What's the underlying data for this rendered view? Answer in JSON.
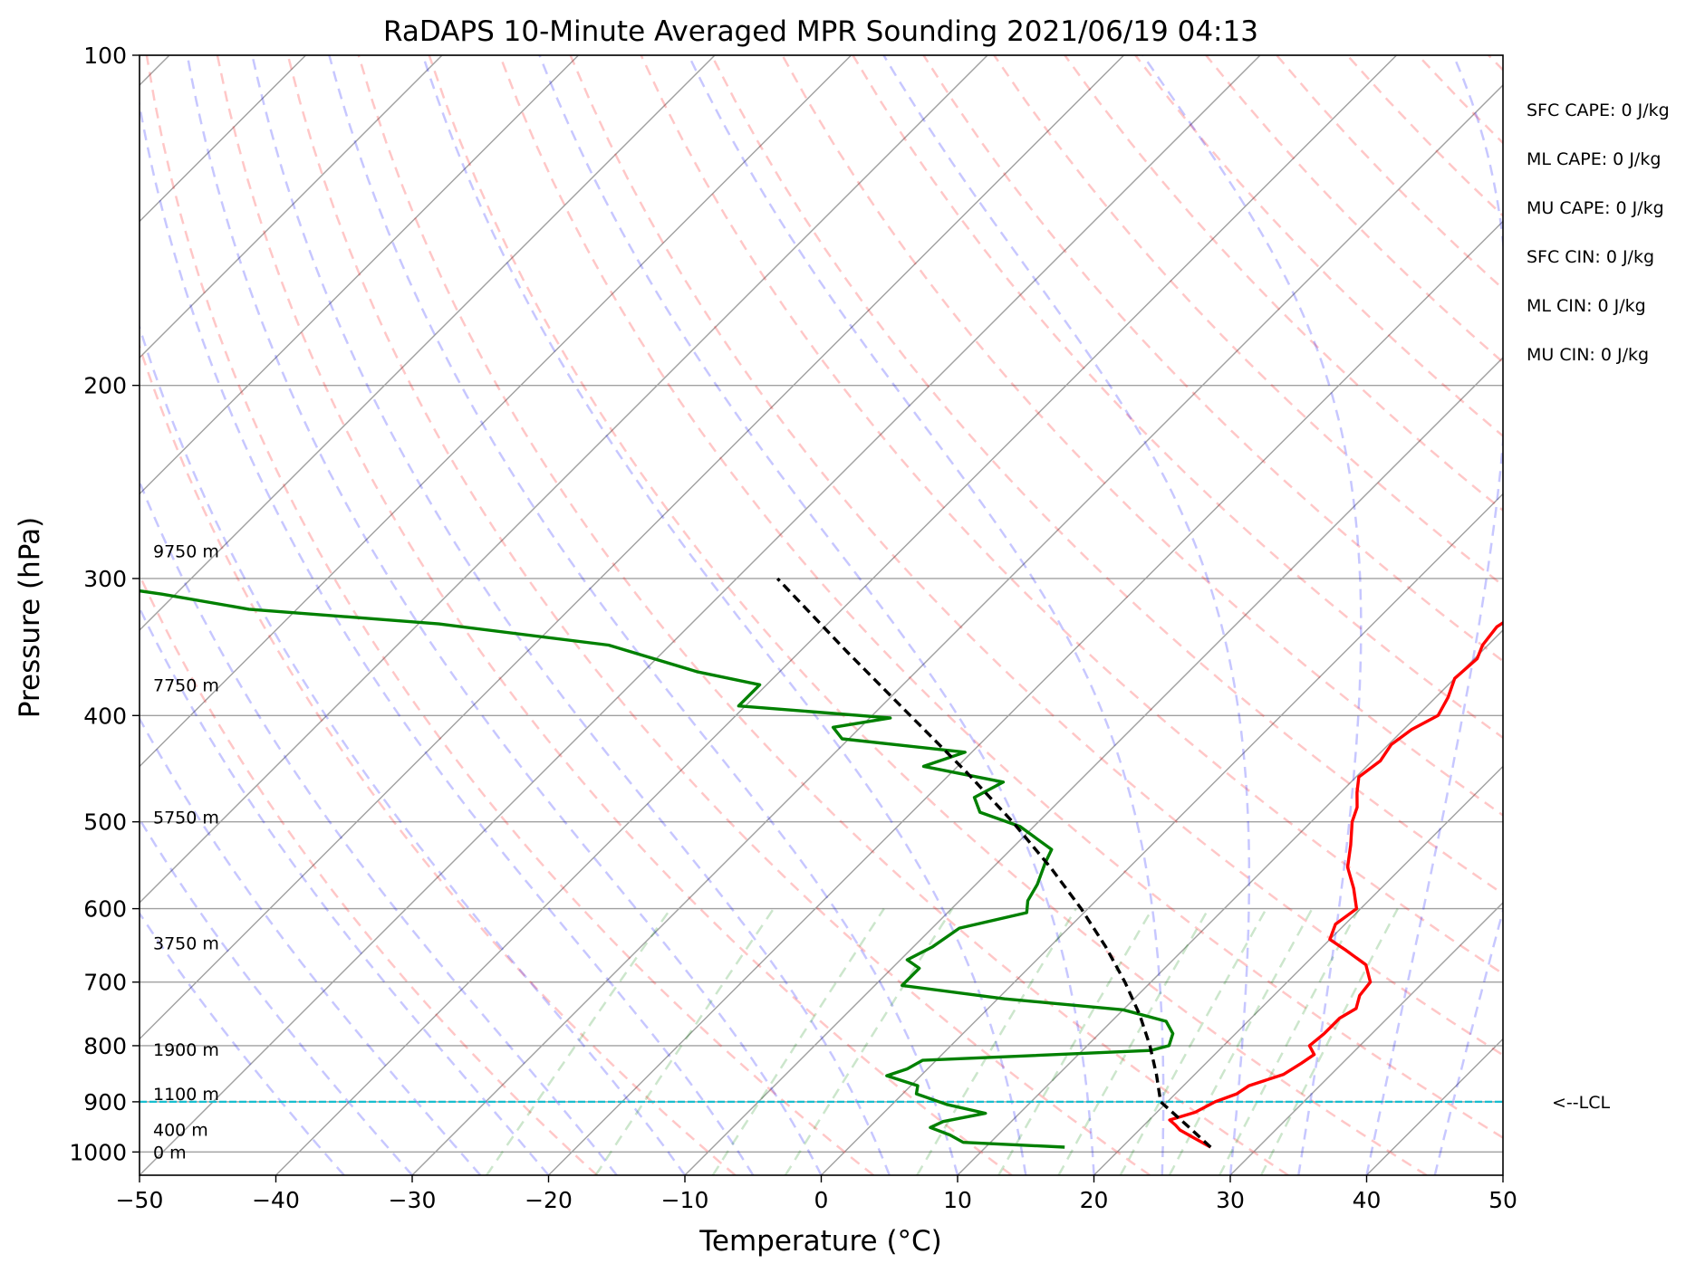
{
  "chart_data": {
    "type": "line",
    "subtype": "skew-T log-P diagram",
    "title": "RaDAPS 10-Minute Averaged MPR Sounding 2021/06/19 04:13",
    "xlabel": "Temperature (°C)",
    "ylabel": "Pressure (hPa)",
    "xlim": [
      -50,
      50
    ],
    "ylim": [
      1050,
      100
    ],
    "y_scale": "log",
    "skew": "isotherms slanted 45°",
    "grid": true,
    "x_ticks": [
      -50,
      -40,
      -30,
      -20,
      -10,
      0,
      10,
      20,
      30,
      40,
      50
    ],
    "x_tick_labels": [
      "−50",
      "−40",
      "−30",
      "−20",
      "−10",
      "0",
      "10",
      "20",
      "30",
      "40",
      "50"
    ],
    "y_ticks": [
      1000,
      900,
      800,
      700,
      600,
      500,
      400,
      300,
      200,
      100
    ],
    "y_tick_labels": [
      "1000",
      "900",
      "800",
      "700",
      "600",
      "500",
      "400",
      "300",
      "200",
      "100"
    ],
    "series": [
      {
        "role": "temperature",
        "color": "#ff0000",
        "points": [
          [
            990,
            26.5
          ],
          [
            970,
            24.5
          ],
          [
            955,
            23.0
          ],
          [
            945,
            22.3
          ],
          [
            935,
            21.5
          ],
          [
            920,
            22.8
          ],
          [
            900,
            23.5
          ],
          [
            885,
            24.5
          ],
          [
            870,
            24.8
          ],
          [
            850,
            26.5
          ],
          [
            830,
            27.0
          ],
          [
            815,
            27.3
          ],
          [
            800,
            26.3
          ],
          [
            780,
            26.5
          ],
          [
            755,
            26.5
          ],
          [
            740,
            27.0
          ],
          [
            720,
            26.3
          ],
          [
            700,
            26.1
          ],
          [
            675,
            24.5
          ],
          [
            655,
            22.0
          ],
          [
            640,
            20.0
          ],
          [
            620,
            19.3
          ],
          [
            600,
            19.7
          ],
          [
            575,
            18.0
          ],
          [
            550,
            16.0
          ],
          [
            525,
            14.6
          ],
          [
            500,
            13.0
          ],
          [
            485,
            12.3
          ],
          [
            470,
            11.2
          ],
          [
            455,
            10.2
          ],
          [
            440,
            10.6
          ],
          [
            425,
            10.2
          ],
          [
            412,
            10.6
          ],
          [
            400,
            11.5
          ],
          [
            385,
            10.9
          ],
          [
            370,
            10.0
          ],
          [
            355,
            10.2
          ],
          [
            345,
            9.6
          ],
          [
            332,
            9.3
          ],
          [
            320,
            10.0
          ],
          [
            310,
            9.7
          ],
          [
            300,
            9.3
          ]
        ]
      },
      {
        "role": "dewpoint",
        "color": "#008000",
        "points": [
          [
            990,
            15.8
          ],
          [
            980,
            8.0
          ],
          [
            965,
            6.5
          ],
          [
            950,
            4.5
          ],
          [
            938,
            5.0
          ],
          [
            922,
            7.5
          ],
          [
            905,
            4.0
          ],
          [
            885,
            1.0
          ],
          [
            870,
            0.5
          ],
          [
            852,
            -2.5
          ],
          [
            840,
            -1.5
          ],
          [
            825,
            -1.0
          ],
          [
            808,
            15.0
          ],
          [
            800,
            16.0
          ],
          [
            780,
            15.4
          ],
          [
            760,
            14.0
          ],
          [
            742,
            10.0
          ],
          [
            725,
            0.5
          ],
          [
            705,
            -8.0
          ],
          [
            680,
            -8.0
          ],
          [
            668,
            -9.5
          ],
          [
            650,
            -8.6
          ],
          [
            625,
            -8.0
          ],
          [
            605,
            -4.2
          ],
          [
            590,
            -5.0
          ],
          [
            570,
            -5.5
          ],
          [
            545,
            -6.5
          ],
          [
            530,
            -7.0
          ],
          [
            505,
            -11.0
          ],
          [
            490,
            -15.0
          ],
          [
            475,
            -16.5
          ],
          [
            460,
            -15.5
          ],
          [
            445,
            -22.5
          ],
          [
            432,
            -20.5
          ],
          [
            420,
            -30.5
          ],
          [
            410,
            -32.0
          ],
          [
            402,
            -28.5
          ],
          [
            392,
            -40.5
          ],
          [
            375,
            -40.5
          ],
          [
            365,
            -46.0
          ],
          [
            345,
            -54.5
          ],
          [
            330,
            -68.5
          ],
          [
            320,
            -83.5
          ],
          [
            310,
            -91.0
          ],
          [
            305,
            -95.5
          ]
        ]
      },
      {
        "role": "parcel profile",
        "color": "#000000",
        "points": [
          [
            990,
            26.5
          ],
          [
            950,
            23.5
          ],
          [
            900,
            19.5
          ],
          [
            850,
            17.2
          ],
          [
            800,
            14.6
          ],
          [
            750,
            11.6
          ],
          [
            700,
            8.1
          ],
          [
            650,
            4.1
          ],
          [
            600,
            -0.5
          ],
          [
            550,
            -5.8
          ],
          [
            500,
            -11.9
          ],
          [
            450,
            -19.0
          ],
          [
            400,
            -27.2
          ],
          [
            350,
            -36.5
          ],
          [
            300,
            -47.0
          ]
        ]
      }
    ],
    "lcl": {
      "pressure": 900,
      "label": "<--LCL",
      "color": "#17becf"
    },
    "height_markers": [
      {
        "label": "0 m",
        "pressure": 1000
      },
      {
        "label": "400 m",
        "pressure": 954
      },
      {
        "label": "1100 m",
        "pressure": 885
      },
      {
        "label": "1900 m",
        "pressure": 806
      },
      {
        "label": "3750 m",
        "pressure": 645
      },
      {
        "label": "5750 m",
        "pressure": 495
      },
      {
        "label": "7750 m",
        "pressure": 375
      },
      {
        "label": "9750 m",
        "pressure": 283
      }
    ],
    "indices": [
      "SFC CAPE: 0 J/kg",
      "ML CAPE: 0 J/kg",
      "MU CAPE: 0 J/kg",
      "SFC CIN: 0 J/kg",
      "ML CIN: 0 J/kg",
      "MU CIN: 0 J/kg"
    ],
    "dry_adiabats_theta_K": [
      -20,
      -10,
      0,
      10,
      20,
      30,
      40,
      50,
      60,
      70,
      80,
      90,
      100,
      110,
      120,
      130,
      140,
      150,
      160,
      170,
      180,
      190,
      200
    ],
    "moist_adiabats_start_C": [
      -35,
      -30,
      -25,
      -20,
      -15,
      -10,
      -5,
      0,
      5,
      10,
      15,
      20,
      25,
      30,
      35,
      40,
      45
    ],
    "mixing_ratios_g_kg": [
      0.5,
      1,
      2,
      3,
      6,
      9,
      12,
      16,
      20,
      25,
      30
    ]
  },
  "colors": {
    "temperature": "#ff0000",
    "dewpoint": "#008000",
    "parcel": "#000000",
    "isotherm": "#a0a0a0",
    "isobar": "#a0a0a0",
    "dry_adiabat": "#ff0000",
    "moist_adiabat": "#0000ff",
    "mixing_ratio": "#008000",
    "lcl": "#17becf"
  }
}
